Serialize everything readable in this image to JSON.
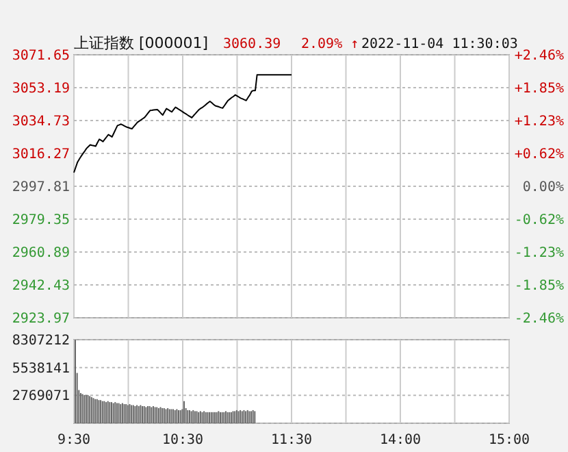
{
  "chart_data": [
    {
      "type": "line",
      "title": "上证指数 [000001]",
      "annotations": [
        "3060.39",
        "2.09% ↑",
        "2022-11-04 11:30:03"
      ],
      "categories": [
        null,
        null,
        null,
        null,
        null,
        null,
        null,
        null,
        null,
        null,
        null,
        null,
        null,
        null,
        null,
        null,
        null,
        null,
        null,
        null,
        null,
        null,
        null,
        null,
        null,
        null,
        null,
        null,
        null,
        null,
        null,
        null,
        null,
        null,
        null,
        null,
        null,
        null,
        null,
        null,
        null,
        null,
        null,
        null,
        null,
        null,
        null,
        null,
        null,
        null,
        null,
        null,
        null,
        null,
        null,
        null,
        null,
        null,
        null,
        null,
        null,
        null,
        null,
        null,
        null,
        null,
        null,
        null,
        null,
        null,
        null,
        null,
        null,
        null,
        null,
        null,
        null,
        null,
        null,
        null,
        null,
        null,
        null,
        null,
        null,
        null,
        null,
        null,
        null,
        null,
        null,
        null,
        null,
        null,
        null,
        null,
        null,
        null,
        null,
        null,
        null,
        null,
        null,
        null,
        null,
        null,
        null,
        null,
        null,
        null,
        null,
        null,
        null,
        null,
        null,
        null,
        null,
        null,
        null,
        null,
        null,
        null,
        null,
        null,
        null,
        null,
        null,
        null,
        null,
        null,
        null,
        null,
        null,
        null,
        null,
        null,
        null,
        null,
        null,
        null,
        null,
        null,
        null,
        null,
        null,
        null,
        null,
        null,
        null,
        null,
        null,
        null,
        null,
        null,
        null,
        null,
        null,
        null,
        null,
        null,
        null,
        null,
        null,
        null,
        null,
        null,
        null,
        null,
        null,
        null,
        null,
        null,
        null,
        null,
        null,
        null,
        null,
        null,
        null,
        null,
        null,
        null,
        null,
        null,
        null,
        null,
        null,
        null,
        null,
        null,
        null,
        null,
        null,
        null,
        null,
        null,
        null,
        null,
        null,
        null,
        null,
        null,
        null,
        null,
        null,
        null,
        null,
        null,
        null,
        null,
        null,
        null,
        null,
        null,
        null,
        null,
        null,
        null,
        null,
        null,
        null,
        null,
        null,
        null,
        null,
        null,
        null,
        null,
        null,
        null,
        null,
        null,
        null,
        null,
        null,
        null,
        null,
        null,
        null,
        null,
        null
      ],
      "ylim": [
        2923.97,
        3071.65
      ],
      "yticks": [
        2923.97,
        2942.43,
        2960.89,
        2979.35,
        2997.81,
        3016.27,
        3034.73,
        3053.19,
        3071.65
      ],
      "y2lim": [
        -2.46,
        2.46
      ],
      "y2ticks": [
        {
          "value": -2.46,
          "label": "-2.46%"
        },
        {
          "value": -1.85,
          "label": "-1.85%"
        },
        {
          "value": -1.23,
          "label": "-1.23%"
        },
        {
          "value": -0.62,
          "label": "-0.62%"
        },
        {
          "value": 0,
          "label": "0.00%"
        },
        {
          "value": 0.62,
          "label": "+0.62%"
        },
        {
          "value": 1.23,
          "label": "+1.23%"
        },
        {
          "value": 1.85,
          "label": "+1.85%"
        },
        {
          "value": 2.46,
          "label": "+2.46%"
        }
      ],
      "grid": true,
      "tick_labels": "y",
      "series": [
        {
          "color": "#000000",
          "values": [
            3005.5,
            3008.5,
            3011.4,
            3013.1,
            3014.7,
            3016.2,
            3017.6,
            3019.1,
            3020.1,
            3021.1,
            3020.8,
            3020.6,
            3020.3,
            3022.3,
            3024.2,
            3023.6,
            3022.9,
            3024.2,
            3025.5,
            3026.8,
            3026.2,
            3025.5,
            3027.6,
            3029.8,
            3031.9,
            3032.3,
            3032.7,
            3032.2,
            3031.6,
            3031.1,
            3030.8,
            3030.4,
            3030.1,
            3031.3,
            3032.5,
            3033.7,
            3034.4,
            3035.1,
            3035.8,
            3036.5,
            3037.8,
            3039.1,
            3040.4,
            3040.5,
            3040.7,
            3040.8,
            3040.9,
            3039.9,
            3038.8,
            3037.8,
            3039.6,
            3041.4,
            3040.8,
            3040.2,
            3039.6,
            3040.9,
            3042.2,
            3041.6,
            3040.9,
            3040.3,
            3039.6,
            3038.9,
            3038.3,
            3037.6,
            3037.0,
            3036.3,
            3037.5,
            3038.6,
            3039.8,
            3040.9,
            3041.6,
            3042.2,
            3043.0,
            3043.9,
            3044.7,
            3045.5,
            3044.7,
            3043.8,
            3043.0,
            3042.7,
            3042.4,
            3042.0,
            3041.7,
            3043.1,
            3044.6,
            3046.0,
            3046.8,
            3047.6,
            3048.3,
            3049.1,
            3048.5,
            3047.9,
            3047.3,
            3046.9,
            3046.4,
            3046.0,
            3047.6,
            3049.1,
            3051.1,
            3051.6,
            3051.6,
            3060.4,
            3060.4,
            3060.4,
            3060.4,
            3060.4,
            3060.4,
            3060.4,
            3060.4,
            3060.4,
            3060.4,
            3060.4,
            3060.4,
            3060.4,
            3060.4,
            3060.4,
            3060.4,
            3060.4,
            3060.4,
            3060.4,
            3060.4,
            null,
            null,
            null,
            null,
            null,
            null,
            null,
            null,
            null,
            null,
            null,
            null,
            null,
            null,
            null,
            null,
            null,
            null,
            null,
            null,
            null,
            null,
            null,
            null,
            null,
            null,
            null,
            null,
            null,
            null,
            null,
            null,
            null,
            null,
            null,
            null,
            null,
            null,
            null,
            null,
            null,
            null,
            null,
            null,
            null,
            null,
            null,
            null,
            null,
            null,
            null,
            null,
            null,
            null,
            null,
            null,
            null,
            null,
            null,
            null,
            null,
            null,
            null,
            null,
            null,
            null,
            null,
            null,
            null,
            null,
            null,
            null,
            null,
            null,
            null,
            null,
            null,
            null,
            null,
            null,
            null,
            null,
            null,
            null,
            null,
            null,
            null,
            null,
            null,
            null,
            null,
            null,
            null,
            null,
            null,
            null,
            null,
            null,
            null,
            null,
            null,
            null,
            null,
            null,
            null,
            null,
            null,
            null,
            null,
            null,
            null,
            null,
            null,
            null,
            null,
            null,
            null,
            null,
            null,
            null
          ]
        }
      ]
    },
    {
      "type": "bar",
      "categories": [
        "9:30",
        null,
        null,
        null,
        null,
        null,
        null,
        null,
        null,
        null,
        null,
        null,
        null,
        null,
        null,
        null,
        null,
        null,
        null,
        null,
        null,
        null,
        null,
        null,
        null,
        null,
        null,
        null,
        null,
        null,
        null,
        null,
        null,
        null,
        null,
        null,
        null,
        null,
        null,
        null,
        null,
        null,
        null,
        null,
        null,
        null,
        null,
        null,
        null,
        null,
        null,
        null,
        null,
        null,
        null,
        null,
        null,
        null,
        null,
        null,
        "10:30",
        null,
        null,
        null,
        null,
        null,
        null,
        null,
        null,
        null,
        null,
        null,
        null,
        null,
        null,
        null,
        null,
        null,
        null,
        null,
        null,
        null,
        null,
        null,
        null,
        null,
        null,
        null,
        null,
        null,
        null,
        null,
        null,
        null,
        null,
        null,
        null,
        null,
        null,
        null,
        null,
        null,
        null,
        null,
        null,
        null,
        null,
        null,
        null,
        null,
        null,
        null,
        null,
        null,
        null,
        null,
        null,
        null,
        null,
        null,
        "11:30",
        null,
        null,
        null,
        null,
        null,
        null,
        null,
        null,
        null,
        null,
        null,
        null,
        null,
        null,
        null,
        null,
        null,
        null,
        null,
        null,
        null,
        null,
        null,
        null,
        null,
        null,
        null,
        null,
        null,
        null,
        null,
        null,
        null,
        null,
        null,
        null,
        null,
        null,
        null,
        null,
        null,
        null,
        null,
        null,
        null,
        null,
        null,
        null,
        null,
        null,
        null,
        null,
        null,
        null,
        null,
        null,
        null,
        null,
        null,
        "14:00",
        null,
        null,
        null,
        null,
        null,
        null,
        null,
        null,
        null,
        null,
        null,
        null,
        null,
        null,
        null,
        null,
        null,
        null,
        null,
        null,
        null,
        null,
        null,
        null,
        null,
        null,
        null,
        null,
        null,
        null,
        null,
        null,
        null,
        null,
        null,
        null,
        null,
        null,
        null,
        null,
        null,
        null,
        null,
        null,
        null,
        null,
        null,
        null,
        null,
        null,
        null,
        null,
        null,
        null,
        null,
        null,
        null,
        null,
        null,
        "15:00"
      ],
      "ylim": [
        0,
        8307212
      ],
      "yticks": [
        {
          "value": 0,
          "label": null
        },
        2769071,
        5538141,
        8307212
      ],
      "grid": true,
      "series": [
        {
          "color": "#666666",
          "values": [
            8300000,
            5000000,
            3300000,
            3000000,
            2900000,
            2800000,
            2800000,
            2800000,
            2700000,
            2600000,
            2500000,
            2400000,
            2400000,
            2300000,
            2300000,
            2200000,
            2200000,
            2100000,
            2200000,
            2100000,
            2100000,
            2000000,
            2100000,
            2000000,
            2000000,
            1900000,
            2000000,
            1900000,
            1900000,
            1800000,
            1900000,
            1800000,
            1800000,
            1700000,
            1800000,
            1700000,
            1800000,
            1700000,
            1700000,
            1600000,
            1700000,
            1700000,
            1600000,
            1700000,
            1600000,
            1600000,
            1500000,
            1600000,
            1500000,
            1500000,
            1400000,
            1500000,
            1400000,
            1400000,
            1400000,
            1300000,
            1400000,
            1300000,
            1300000,
            1400000,
            2200000,
            1500000,
            1300000,
            1300000,
            1200000,
            1300000,
            1200000,
            1200000,
            1100000,
            1200000,
            1100000,
            1200000,
            1100000,
            1100000,
            1100000,
            1100000,
            1100000,
            1100000,
            1100000,
            1200000,
            1100000,
            1100000,
            1100000,
            1200000,
            1100000,
            1100000,
            1100000,
            1200000,
            1200000,
            1300000,
            1200000,
            1300000,
            1200000,
            1300000,
            1200000,
            1300000,
            1200000,
            1200000,
            1300000,
            1200000,
            null,
            null,
            null,
            null,
            null,
            null,
            null,
            null,
            null,
            null,
            null,
            null,
            null,
            null,
            null,
            null,
            null,
            null,
            null,
            null,
            null,
            null,
            null,
            null,
            null,
            null,
            null,
            null,
            null,
            null,
            null,
            null,
            null,
            null,
            null,
            null,
            null,
            null,
            null,
            null,
            null,
            null,
            null,
            null,
            null,
            null,
            null,
            null,
            null,
            null,
            null,
            null,
            null,
            null,
            null,
            null,
            null,
            null,
            null,
            null,
            null,
            null,
            null,
            null,
            null,
            null,
            null,
            null,
            null,
            null,
            null,
            null,
            null,
            null,
            null,
            null,
            null,
            null,
            null,
            null,
            null,
            null,
            null,
            null,
            null,
            null,
            null,
            null,
            null,
            null,
            null,
            null,
            null,
            null,
            null,
            null,
            null,
            null,
            null,
            null,
            null,
            null,
            null,
            null,
            null,
            null,
            null,
            null,
            null,
            null,
            null,
            null,
            null,
            null,
            null,
            null,
            null,
            null,
            null,
            null,
            null,
            null,
            null,
            null,
            null,
            null,
            null,
            null,
            null,
            null,
            null,
            null,
            null,
            null,
            null,
            null,
            null,
            null,
            null,
            null,
            null
          ]
        }
      ]
    }
  ]
}
